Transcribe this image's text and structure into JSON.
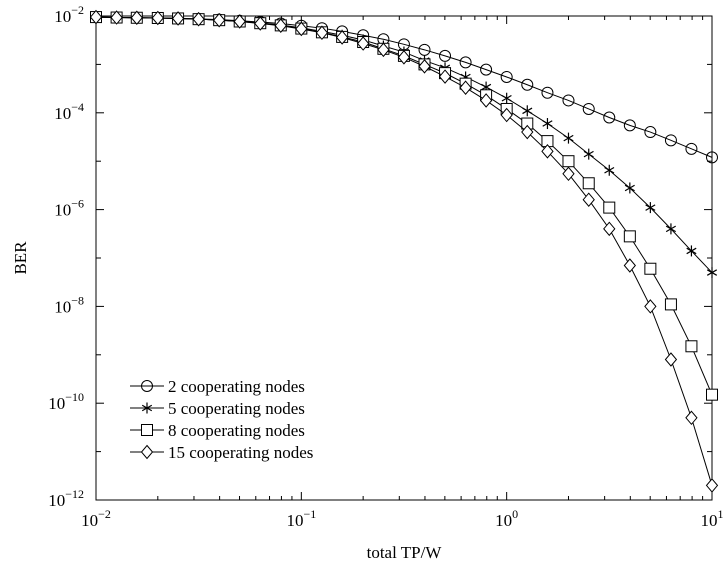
{
  "chart_data": {
    "type": "line",
    "title": "",
    "xlabel": "total TP/W",
    "ylabel": "BER",
    "xscale": "log",
    "yscale": "log",
    "xlim": [
      0.01,
      10
    ],
    "ylim": [
      1e-12,
      0.01
    ],
    "x_ticks": [
      {
        "value": 0.01,
        "base": "10",
        "exp": "−2"
      },
      {
        "value": 0.1,
        "base": "10",
        "exp": "−1"
      },
      {
        "value": 1,
        "base": "10",
        "exp": "0"
      },
      {
        "value": 10,
        "base": "10",
        "exp": "1"
      }
    ],
    "y_ticks": [
      {
        "value": 1e-12,
        "base": "10",
        "exp": "−12"
      },
      {
        "value": 1e-10,
        "base": "10",
        "exp": "−10"
      },
      {
        "value": 1e-08,
        "base": "10",
        "exp": "−8"
      },
      {
        "value": 1e-06,
        "base": "10",
        "exp": "−6"
      },
      {
        "value": 0.0001,
        "base": "10",
        "exp": "−4"
      },
      {
        "value": 0.01,
        "base": "10",
        "exp": "−2"
      }
    ],
    "grid": false,
    "legend_position": "bottom-left",
    "x": [
      0.01,
      0.0126,
      0.0158,
      0.02,
      0.0251,
      0.0316,
      0.0398,
      0.0501,
      0.0631,
      0.0794,
      0.1,
      0.126,
      0.158,
      0.2,
      0.251,
      0.316,
      0.398,
      0.501,
      0.631,
      0.794,
      1.0,
      1.26,
      1.58,
      2.0,
      2.51,
      3.16,
      3.98,
      5.01,
      6.31,
      7.94,
      10.0
    ],
    "series": [
      {
        "name": "2 cooperating nodes",
        "marker": "circle",
        "values": [
          0.0095,
          0.0093,
          0.0092,
          0.0091,
          0.009,
          0.0087,
          0.0084,
          0.008,
          0.0075,
          0.007,
          0.0063,
          0.0056,
          0.0048,
          0.004,
          0.0033,
          0.0026,
          0.002,
          0.0015,
          0.0011,
          0.00078,
          0.00055,
          0.00038,
          0.00026,
          0.00018,
          0.00012,
          8e-05,
          5.5e-05,
          4e-05,
          2.7e-05,
          1.8e-05,
          1.2e-05
        ]
      },
      {
        "name": "5 cooperating nodes",
        "marker": "asterisk",
        "values": [
          0.0095,
          0.0093,
          0.0092,
          0.0091,
          0.0089,
          0.0086,
          0.0082,
          0.0078,
          0.0072,
          0.0065,
          0.0057,
          0.0048,
          0.004,
          0.0032,
          0.0024,
          0.0018,
          0.0012,
          0.00085,
          0.00055,
          0.00034,
          0.0002,
          0.00011,
          6e-05,
          3e-05,
          1.4e-05,
          6.5e-06,
          2.8e-06,
          1.1e-06,
          4e-07,
          1.4e-07,
          5e-08
        ]
      },
      {
        "name": "8 cooperating nodes",
        "marker": "square",
        "values": [
          0.0095,
          0.0093,
          0.0092,
          0.0091,
          0.0089,
          0.0086,
          0.0082,
          0.0077,
          0.0071,
          0.0064,
          0.0055,
          0.0046,
          0.0037,
          0.0029,
          0.0021,
          0.0015,
          0.001,
          0.00066,
          0.0004,
          0.00023,
          0.00012,
          6e-05,
          2.6e-05,
          1e-05,
          3.5e-06,
          1.1e-06,
          2.8e-07,
          6e-08,
          1.1e-08,
          1.5e-09,
          1.5e-10
        ]
      },
      {
        "name": "15 cooperating nodes",
        "marker": "diamond",
        "values": [
          0.0095,
          0.0093,
          0.0092,
          0.0091,
          0.0089,
          0.0086,
          0.0082,
          0.0077,
          0.007,
          0.0063,
          0.0054,
          0.0045,
          0.0036,
          0.0027,
          0.002,
          0.0014,
          0.00091,
          0.00056,
          0.00033,
          0.00018,
          9e-05,
          4e-05,
          1.6e-05,
          5.5e-06,
          1.6e-06,
          4e-07,
          7e-08,
          1e-08,
          8e-10,
          5e-11,
          2e-12
        ]
      }
    ]
  }
}
